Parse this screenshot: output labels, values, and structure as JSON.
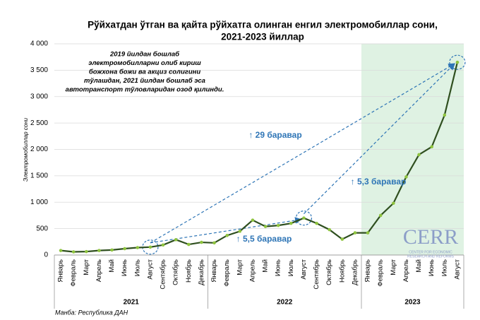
{
  "chart_data": {
    "type": "line",
    "title": [
      "Рўйхатдан ўтган ва қайта рўйхатга олинган енгил электромобиллар сони,",
      "2021-2023 йиллар"
    ],
    "y_label": "Электромобиллар сони",
    "groups": [
      {
        "name": "2021",
        "categories": [
          "Январь",
          "Февраль",
          "Март",
          "Апрель",
          "Май",
          "Июнь",
          "Июль",
          "Август",
          "Сентябрь",
          "Октябрь",
          "Ноябрь",
          "Декабрь"
        ]
      },
      {
        "name": "2022",
        "categories": [
          "Январь",
          "Февраль",
          "Март",
          "Апрель",
          "Май",
          "Июнь",
          "Июль",
          "Август",
          "Сентябрь",
          "Октябрь",
          "Ноябрь",
          "Декабрь"
        ]
      },
      {
        "name": "2023",
        "categories": [
          "Январь",
          "Февраль",
          "Март",
          "Апрель",
          "Май",
          "Июнь",
          "Июль",
          "Август"
        ]
      }
    ],
    "series": [
      {
        "color": "#2f4f1f",
        "marker_color": "#8fc43f",
        "values": [
          85,
          60,
          65,
          85,
          95,
          120,
          140,
          150,
          190,
          290,
          200,
          240,
          230,
          370,
          450,
          660,
          540,
          560,
          600,
          700,
          600,
          480,
          300,
          420,
          420,
          750,
          980,
          1480,
          1900,
          2050,
          2650,
          3650
        ]
      }
    ],
    "ylim": [
      0,
      4000
    ],
    "yticks": [
      0,
      500,
      {
        "value": 1000,
        "label": "1 000"
      },
      {
        "value": 1500,
        "label": "1 500"
      },
      {
        "value": 2000,
        "label": "2 000"
      },
      {
        "value": 2500,
        "label": "2 500"
      },
      {
        "value": 3000,
        "label": "3 000"
      },
      {
        "value": 3500,
        "label": "3 500"
      },
      {
        "value": 4000,
        "label": "4 000"
      }
    ],
    "grid": true,
    "highlight_color": "#dff2e3",
    "note": [
      "2019 йилдан бошлаб",
      "электромобилларни олиб кириш",
      "божхона божи ва акциз солигини",
      "тўлашдан, 2021 йилдан бошлаб эса",
      "автотранспорт тўловларидан озод қилинди."
    ],
    "annotations": [
      "↑ 29 баравар",
      "↑ 5,5 баравар",
      "↑ 5,3 баравар"
    ],
    "source": "Манба: Республика ДАН",
    "logo": [
      "CERR",
      "CENTER FOR ECONOMIC",
      "RESEARCH AND REFORMS"
    ]
  }
}
